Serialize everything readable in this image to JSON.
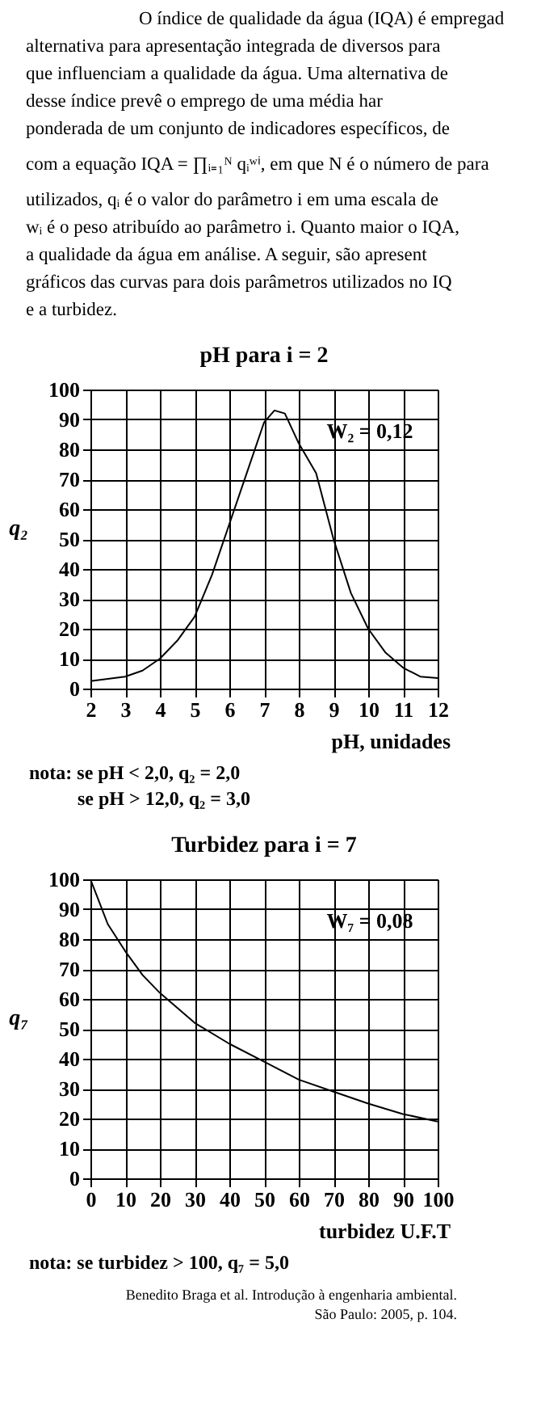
{
  "chart_data": [
    {
      "type": "other",
      "annotations": [
        "O índice de qualidade da água (IQA) é empregad",
        "alternativa para apresentação integrada de diversos para",
        "que influenciam a qualidade da água. Uma alternativa de",
        "desse índice prevê o emprego de uma média har",
        "ponderada de um conjunto de indicadores específicos, de",
        "com a equação IQA = ∏ᵢ₌₁ᴺ qᵢʷⁱ, em que N é o número de para",
        "utilizados, qᵢ é o valor do parâmetro i em uma escala de",
        "wᵢ é o peso atribuído ao parâmetro i. Quanto maior o IQA,",
        "a qualidade da água em análise. A seguir, são apresent",
        "gráficos das curvas para dois parâmetros utilizados no IQ",
        "e a turbidez."
      ]
    },
    {
      "type": "line",
      "title": "pH para i = 2",
      "xlabel": "pH, unidades",
      "ylabel": "q₂",
      "xlim": [
        2,
        12
      ],
      "ylim": [
        0,
        100
      ],
      "xticks": [
        2,
        3,
        4,
        5,
        6,
        7,
        8,
        9,
        10,
        11,
        12
      ],
      "yticks": [
        0,
        10,
        20,
        30,
        40,
        50,
        60,
        70,
        80,
        90,
        100
      ],
      "grid": true,
      "x": [
        2,
        3,
        3.5,
        4,
        4.5,
        5,
        5.5,
        6,
        6.5,
        7,
        7.3,
        7.6,
        8,
        8.5,
        9,
        9.5,
        10,
        10.5,
        11,
        11.5,
        12
      ],
      "series": [
        {
          "color": "#000000",
          "values": [
            2.5,
            4,
            6,
            10,
            16,
            24,
            38,
            55,
            72,
            89,
            93,
            92,
            82,
            72,
            50,
            32,
            20,
            12,
            7,
            4,
            3.5
          ]
        }
      ],
      "annotations": [
        "W₂ = 0,12",
        "nota: se pH < 2,0, q₂ = 2,0",
        "se pH > 12,0, q₂ = 3,0"
      ]
    },
    {
      "type": "line",
      "title": "Turbidez para i = 7",
      "xlabel": "turbidez U.F.T",
      "ylabel": "q₇",
      "xlim": [
        0,
        100
      ],
      "ylim": [
        0,
        100
      ],
      "xticks": [
        0,
        10,
        20,
        30,
        40,
        50,
        60,
        70,
        80,
        90,
        100
      ],
      "yticks": [
        0,
        10,
        20,
        30,
        40,
        50,
        60,
        70,
        80,
        90,
        100
      ],
      "grid": true,
      "x": [
        0,
        2,
        5,
        10,
        15,
        20,
        30,
        40,
        50,
        60,
        70,
        80,
        90,
        100
      ],
      "series": [
        {
          "color": "#000000",
          "values": [
            100,
            94,
            85,
            76,
            68,
            62,
            52,
            45,
            39,
            33,
            29,
            25,
            21.5,
            19
          ]
        }
      ],
      "annotations": [
        "W₇ = 0,08",
        "nota: se turbidez > 100, q₇ = 5,0",
        "Benedito Braga et al. Introdução à engenharia ambiental.",
        "São Paulo: 2005, p. 104."
      ]
    }
  ]
}
